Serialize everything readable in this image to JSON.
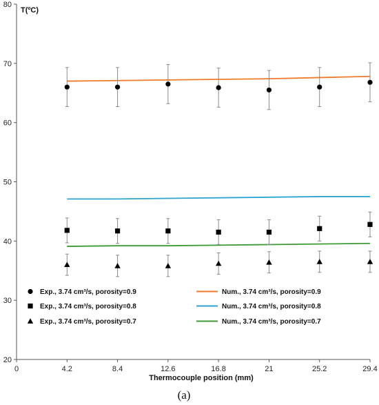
{
  "chart_data": {
    "type": "scatter",
    "ylabel": "T(ºC)",
    "xlabel": "Thermocouple position (mm)",
    "panel_label": "(a)",
    "xlim": [
      0,
      29.4
    ],
    "ylim": [
      20,
      80
    ],
    "x_ticks": [
      0,
      4.2,
      8.4,
      12.6,
      16.8,
      21,
      25.2,
      29.4
    ],
    "x_tick_labels": [
      "0",
      "4.2",
      "8.4",
      "12.6",
      "16.8",
      "21",
      "25.2",
      "29.4"
    ],
    "y_ticks": [
      20,
      30,
      40,
      50,
      60,
      70,
      80
    ],
    "grid": false,
    "legend_position": "bottom",
    "series": [
      {
        "name": "Exp., 3.74 cm³/s, porosity=0.9",
        "kind": "markers",
        "marker": "circle",
        "color": "#000000",
        "x": [
          4.2,
          8.4,
          12.6,
          16.8,
          21,
          25.2,
          29.4
        ],
        "values": [
          66.0,
          66.0,
          66.5,
          65.9,
          65.5,
          66.0,
          66.8
        ],
        "error": 3.3
      },
      {
        "name": "Exp., 3.74 cm³/s, porosity=0.8",
        "kind": "markers",
        "marker": "square",
        "color": "#000000",
        "x": [
          4.2,
          8.4,
          12.6,
          16.8,
          21,
          25.2,
          29.4
        ],
        "values": [
          41.8,
          41.7,
          41.7,
          41.5,
          41.5,
          42.1,
          42.8
        ],
        "error": 2.1
      },
      {
        "name": "Exp., 3.74 cm³/s, porosity=0.7",
        "kind": "markers",
        "marker": "triangle",
        "color": "#000000",
        "x": [
          4.2,
          8.4,
          12.6,
          16.8,
          21,
          25.2,
          29.4
        ],
        "values": [
          36.0,
          35.8,
          35.8,
          36.2,
          36.4,
          36.5,
          36.5
        ],
        "error": 1.8
      },
      {
        "name": "Num., 3.74 cm³/s, porosity=0.9",
        "kind": "line",
        "color": "#f07a2a",
        "x": [
          4.2,
          8.4,
          12.6,
          16.8,
          21,
          25.2,
          29.4
        ],
        "values": [
          67.0,
          67.1,
          67.2,
          67.3,
          67.4,
          67.6,
          67.8
        ]
      },
      {
        "name": "Num., 3.74 cm³/s, porosity=0.8",
        "kind": "line",
        "color": "#2ea3d0",
        "x": [
          4.2,
          8.4,
          12.6,
          16.8,
          21,
          25.2,
          29.4
        ],
        "values": [
          47.1,
          47.1,
          47.2,
          47.3,
          47.4,
          47.5,
          47.5
        ]
      },
      {
        "name": "Num., 3.74 cm³/s, porosity=0.7",
        "kind": "line",
        "color": "#3c9a35",
        "x": [
          4.2,
          8.4,
          12.6,
          16.8,
          21,
          25.2,
          29.4
        ],
        "values": [
          39.1,
          39.2,
          39.2,
          39.3,
          39.4,
          39.5,
          39.6
        ]
      }
    ]
  }
}
